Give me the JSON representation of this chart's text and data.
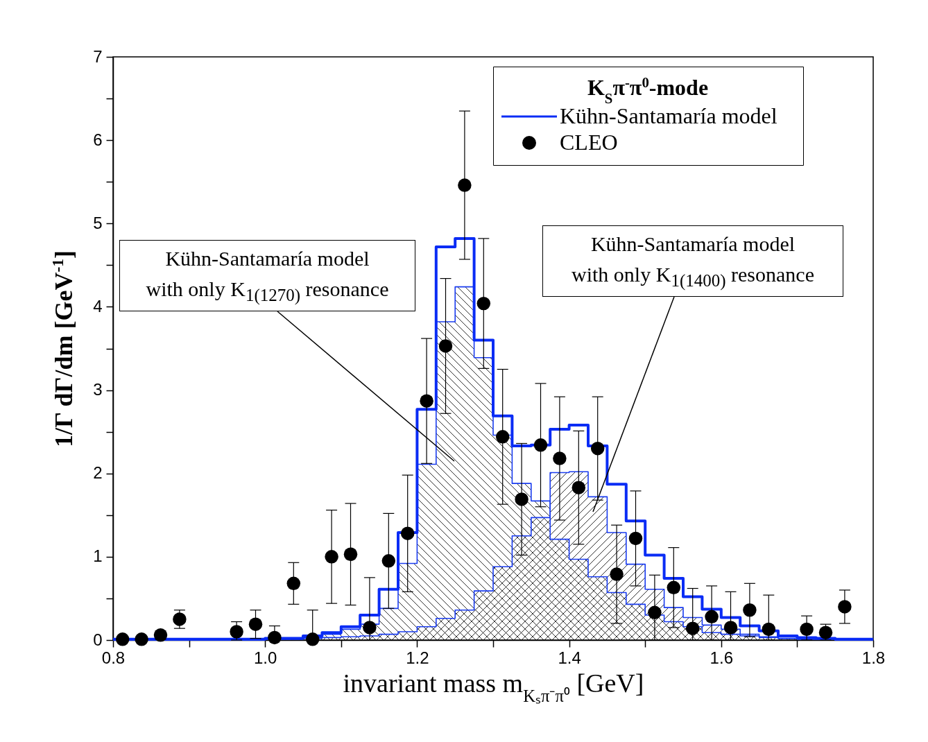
{
  "chart_data": {
    "type": "histogram",
    "xlabel": "invariant mass m$_{Kₛπ⁻π⁰}$ [GeV]",
    "ylabel": "1/Γ dΓ/dm [GeV$^{-1}$]",
    "legend_title": "K$_{S}$π$^{-}$π$^{0}$-mode",
    "legend": "top right",
    "marker": "circle",
    "line_style": "solid",
    "xlim": [
      0.8,
      1.8
    ],
    "xticks": [
      0.8,
      {
        "value": 0.9,
        "label": null
      },
      {
        "value": 1,
        "label": "1.0"
      },
      {
        "value": 1.1,
        "label": null
      },
      1.2,
      {
        "value": 1.3,
        "label": null
      },
      1.4,
      {
        "value": 1.5,
        "label": null
      },
      1.6,
      {
        "value": 1.7,
        "label": null
      },
      1.8
    ],
    "ylim": [
      0,
      7
    ],
    "yticks": [
      0,
      {
        "value": 0.5,
        "label": null
      },
      1,
      {
        "value": 1.5,
        "label": null
      },
      2,
      {
        "value": 2.5,
        "label": null
      },
      3,
      {
        "value": 3.5,
        "label": null
      },
      4,
      {
        "value": 4.5,
        "label": null
      },
      5,
      {
        "value": 5.5,
        "label": null
      },
      6,
      {
        "value": 6.5,
        "label": null
      },
      7
    ],
    "bins": [
      0.8,
      0.825,
      0.85,
      0.875,
      0.9,
      0.925,
      0.95,
      0.975,
      1.0,
      1.025,
      1.05,
      1.075,
      1.1,
      1.125,
      1.15,
      1.175,
      1.2,
      1.225,
      1.25,
      1.275,
      1.3,
      1.325,
      1.35,
      1.375,
      1.4,
      1.425,
      1.45,
      1.475,
      1.5,
      1.525,
      1.55,
      1.575,
      1.6,
      1.625,
      1.65,
      1.675,
      1.7,
      1.725,
      1.75,
      1.775,
      1.8
    ],
    "series": [
      {
        "name": "Kühn-Santamaría model",
        "color": "#0a2cf5",
        "values": [
          0.01,
          0.01,
          0.01,
          0.01,
          0.01,
          0.01,
          0.01,
          0.01,
          0.02,
          0.02,
          0.05,
          0.09,
          0.16,
          0.3,
          0.61,
          1.29,
          2.77,
          4.72,
          4.82,
          3.6,
          2.69,
          2.33,
          2.34,
          2.53,
          2.58,
          2.33,
          1.87,
          1.43,
          1.02,
          0.74,
          0.52,
          0.37,
          0.27,
          0.17,
          0.11,
          0.05,
          0.03,
          0.02,
          0.01,
          0.01
        ]
      },
      {
        "name": "CLEO",
        "type": "scatter",
        "color": "#000000",
        "x": [
          0.8125,
          0.8375,
          0.8625,
          0.8875,
          0.9625,
          0.9875,
          1.0125,
          1.0375,
          1.0625,
          1.0875,
          1.1125,
          1.1375,
          1.1625,
          1.1875,
          1.2125,
          1.2375,
          1.2625,
          1.2875,
          1.3125,
          1.3375,
          1.3625,
          1.3875,
          1.4125,
          1.4375,
          1.4625,
          1.4875,
          1.5125,
          1.5375,
          1.5625,
          1.5875,
          1.6125,
          1.6375,
          1.6625,
          1.7125,
          1.7375,
          1.7625
        ],
        "values": [
          0.01,
          0.01,
          0.06,
          0.25,
          0.1,
          0.19,
          0.03,
          0.68,
          0.01,
          1.0,
          1.03,
          0.15,
          0.95,
          1.28,
          2.87,
          3.53,
          5.46,
          4.04,
          2.44,
          1.69,
          2.34,
          2.18,
          1.83,
          2.3,
          0.79,
          1.22,
          0.33,
          0.63,
          0.14,
          0.28,
          0.15,
          0.36,
          0.13,
          0.13,
          0.09,
          0.4
        ],
        "errors": [
          [
            0,
            0.03
          ],
          [
            0,
            0.03
          ],
          0.05,
          0.11,
          [
            0,
            0.22
          ],
          0.17,
          [
            0.03,
            0.17
          ],
          0.25,
          [
            0,
            0.36
          ],
          0.56,
          0.61,
          [
            0,
            0.75
          ],
          0.57,
          0.7,
          0.75,
          0.81,
          0.89,
          0.78,
          0.81,
          0.67,
          0.74,
          0.74,
          0.68,
          0.62,
          0.59,
          0.57,
          [
            0,
            0.78
          ],
          0.48,
          [
            0,
            0.62
          ],
          [
            0,
            0.65
          ],
          [
            0,
            0.58
          ],
          0.32,
          [
            0,
            0.54
          ],
          [
            0,
            0.29
          ],
          [
            0,
            0.19
          ],
          0.2
        ]
      },
      {
        "color": "#1a3cf0",
        "values": [
          0,
          0,
          0,
          0,
          0,
          0,
          0,
          0,
          0.01,
          0.01,
          0.03,
          0.07,
          0.13,
          0.19,
          0.38,
          0.92,
          2.11,
          3.82,
          4.24,
          3.39,
          2.46,
          1.88,
          1.67,
          1.21,
          0.97,
          0.76,
          0.57,
          0.43,
          0.3,
          0.22,
          0.16,
          0.09,
          0.07,
          0.05,
          0.03,
          0.02,
          0.01,
          0.01,
          0,
          0
        ]
      },
      {
        "color": "#1a3cf0",
        "values": [
          0,
          0,
          0,
          0,
          0,
          0,
          0,
          0,
          0.01,
          0.01,
          0.02,
          0.03,
          0.04,
          0.05,
          0.07,
          0.1,
          0.16,
          0.26,
          0.36,
          0.59,
          0.88,
          1.25,
          1.47,
          2.01,
          2.02,
          1.72,
          1.29,
          0.91,
          0.61,
          0.39,
          0.27,
          0.18,
          0.13,
          0.07,
          0.04,
          0.02,
          0.01,
          0.01,
          0,
          0
        ]
      }
    ],
    "annotations": [
      "Kühn-Santamaría model with only K$_{1(1270)}$ resonance",
      "Kühn-Santamaría model with only K$_{1(1400)}$ resonance"
    ]
  }
}
